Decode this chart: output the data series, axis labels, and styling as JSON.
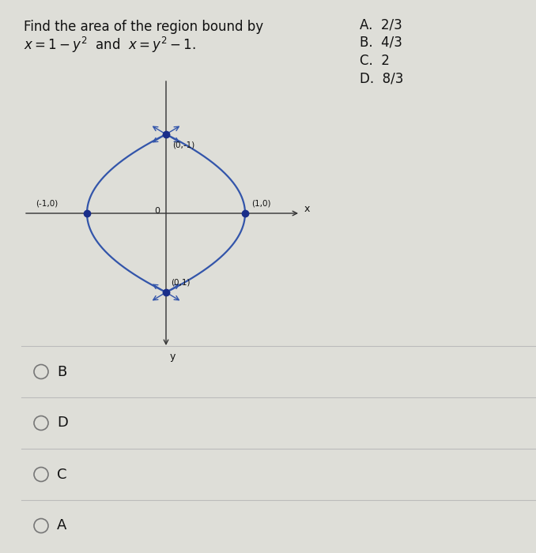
{
  "title_line1": "Find the area of the region bound by",
  "title_line2_left": "x = 1−y²",
  "title_line2_mid": " and ",
  "title_line2_right": "x = y²−1.",
  "options_right": [
    "A.  2/3",
    "B.  4/3",
    "C.  2",
    "D.  8/3"
  ],
  "answer_choices": [
    "B",
    "D",
    "C",
    "A"
  ],
  "curve_color": "#3355aa",
  "point_color": "#1a2e8a",
  "bg_color": "#deded8",
  "axis_color": "#333333",
  "text_color": "#111111",
  "line_sep_color": "#bbbbbb",
  "arrow_color": "#3355aa"
}
